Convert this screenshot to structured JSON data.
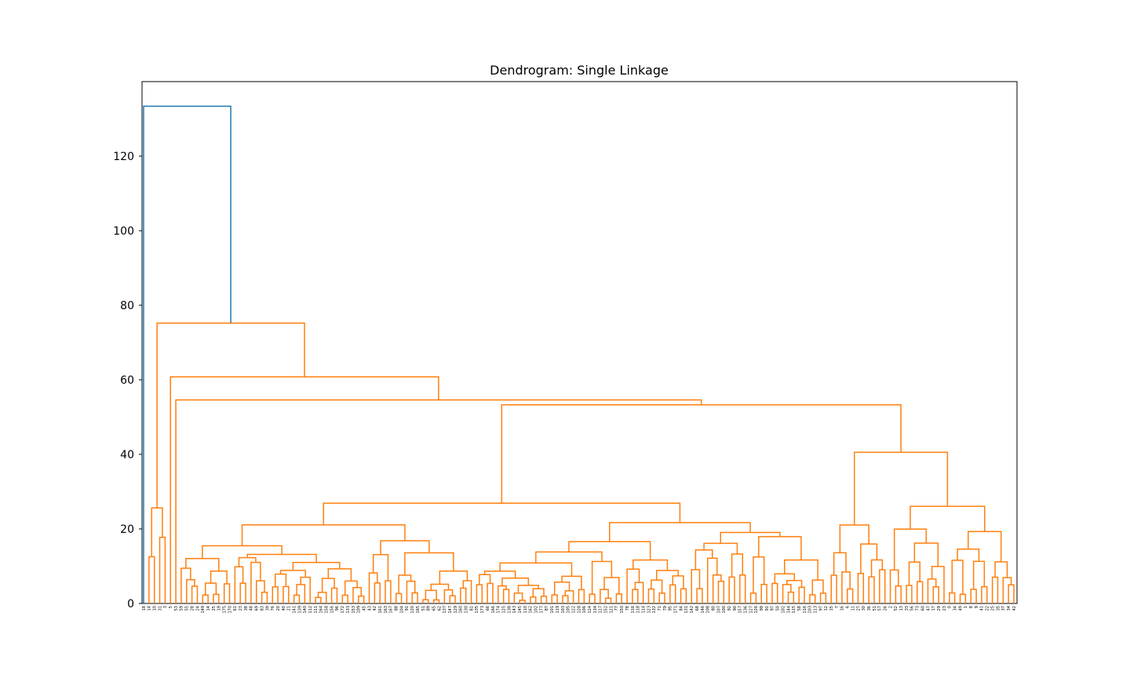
{
  "chart_data": {
    "type": "dendrogram",
    "title": "Dendrogram: Single Linkage",
    "xlabel": "",
    "ylabel": "",
    "ylim": [
      0,
      140
    ],
    "yticks": [
      0,
      20,
      40,
      60,
      80,
      100,
      120
    ],
    "grid": false,
    "colors": {
      "above_threshold": "#1f77b4",
      "cluster": "#ff7f0e",
      "frame": "#000000"
    },
    "leaf_order": [
      "18",
      "14",
      "10",
      "31",
      "3",
      "5",
      "53",
      "59",
      "55",
      "28",
      "24",
      "149",
      "14",
      "25",
      "19",
      "175",
      "170",
      "61",
      "23",
      "38",
      "48",
      "69",
      "83",
      "39",
      "76",
      "20",
      "40",
      "21",
      "141",
      "139",
      "140",
      "112",
      "111",
      "164",
      "158",
      "156",
      "96",
      "172",
      "133",
      "153",
      "109",
      "45",
      "43",
      "42",
      "161",
      "163",
      "167",
      "88",
      "104",
      "91",
      "120",
      "165",
      "51",
      "89",
      "65",
      "62",
      "137",
      "147",
      "129",
      "160",
      "130",
      "81",
      "135",
      "173",
      "66",
      "166",
      "174",
      "125",
      "138",
      "143",
      "145",
      "110",
      "162",
      "102",
      "177",
      "87",
      "101",
      "119",
      "103",
      "105",
      "122",
      "128",
      "106",
      "124",
      "134",
      "117",
      "152",
      "121",
      "77",
      "150",
      "78",
      "116",
      "118",
      "114",
      "123",
      "132",
      "71",
      "79",
      "95",
      "171",
      "84",
      "131",
      "142",
      "68",
      "146",
      "108",
      "80",
      "107",
      "100",
      "92",
      "90",
      "157",
      "136",
      "127",
      "126",
      "99",
      "91",
      "97",
      "50",
      "102",
      "144",
      "115",
      "58",
      "116",
      "103",
      "113",
      "97",
      "12",
      "15",
      "7",
      "16",
      "6",
      "11",
      "27",
      "30",
      "36",
      "51",
      "57",
      "26",
      "2",
      "52",
      "13",
      "33",
      "56",
      "73",
      "60",
      "47",
      "17",
      "29",
      "23",
      "0",
      "34",
      "49",
      "1",
      "8",
      "9",
      "41",
      "22",
      "25",
      "35",
      "37",
      "34",
      "42"
    ],
    "links": [
      {
        "x": 0,
        "y": 133.4,
        "children": [
          "leaf:18",
          "cluster:A"
        ],
        "color": "blue"
      },
      {
        "x": 1,
        "y": 75.2,
        "children": [
          "cluster:B",
          "cluster:C"
        ],
        "color": "orange"
      },
      {
        "x": 2,
        "y": 33.1,
        "children": [
          "leaf:14",
          "cluster:D"
        ],
        "color": "orange"
      },
      {
        "x": 3,
        "y": 60.8,
        "children": [
          "leaf:53",
          "cluster:E"
        ],
        "color": "orange"
      },
      {
        "x": 4,
        "y": 54.6,
        "children": [
          "leaf:59",
          "cluster:F"
        ],
        "color": "orange"
      },
      {
        "x": 5,
        "y": 53.3,
        "children": [
          "cluster:G",
          "cluster:H"
        ],
        "color": "orange"
      },
      {
        "x": 6,
        "y": 50.1,
        "children": [
          "cluster:I",
          "cluster:J"
        ],
        "color": "orange"
      },
      {
        "x": 7,
        "y": 36.7,
        "children": [
          "cluster:K",
          "cluster:L"
        ],
        "color": "orange"
      },
      {
        "x": 8,
        "y": 36.8,
        "children": [
          "cluster:M",
          "cluster:N"
        ],
        "color": "orange"
      },
      {
        "x": 9,
        "y": 35.2,
        "children": [
          "cluster:O",
          "cluster:P"
        ],
        "color": "orange"
      },
      {
        "x": 10,
        "y": 34.9,
        "children": [
          "cluster:Q",
          "cluster:R"
        ],
        "color": "orange"
      }
    ]
  }
}
